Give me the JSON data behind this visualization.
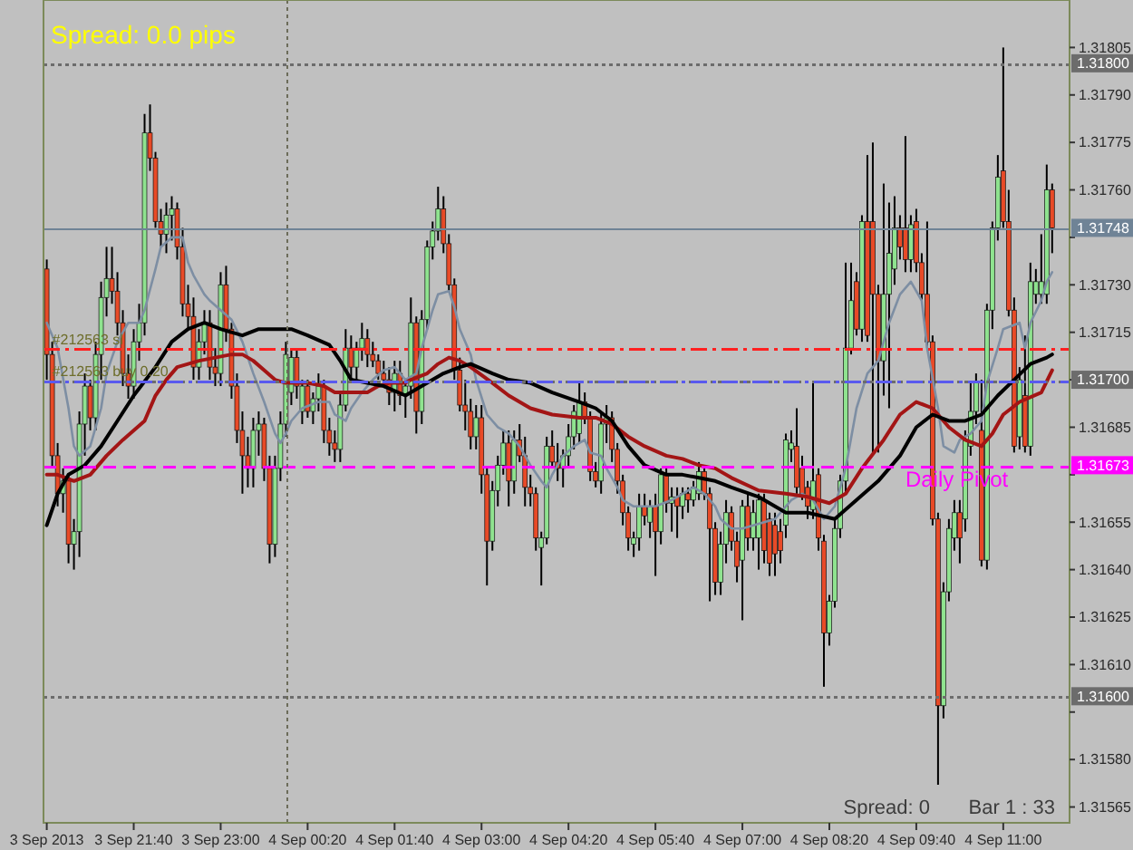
{
  "chart_data": {
    "type": "candlestick",
    "x": [
      "2013-09-03T20:20",
      "2013-09-03T20:25",
      "2013-09-03T20:30",
      "2013-09-03T20:35",
      "2013-09-03T20:40",
      "2013-09-03T20:45",
      "2013-09-03T20:50",
      "2013-09-03T20:55",
      "2013-09-03T21:00",
      "2013-09-03T21:05",
      "2013-09-03T21:10",
      "2013-09-03T21:15",
      "2013-09-03T21:20",
      "2013-09-03T21:25",
      "2013-09-03T21:30",
      "2013-09-03T21:35",
      "2013-09-03T21:40",
      "2013-09-03T21:45",
      "2013-09-03T21:50",
      "2013-09-03T21:55",
      "2013-09-03T22:00",
      "2013-09-03T22:05",
      "2013-09-03T22:10",
      "2013-09-03T22:15",
      "2013-09-03T22:20",
      "2013-09-03T22:25",
      "2013-09-03T22:30",
      "2013-09-03T22:35",
      "2013-09-03T22:40",
      "2013-09-03T22:45",
      "2013-09-03T22:50",
      "2013-09-03T22:55",
      "2013-09-03T23:00",
      "2013-09-03T23:05",
      "2013-09-03T23:10",
      "2013-09-03T23:15",
      "2013-09-03T23:20",
      "2013-09-03T23:25",
      "2013-09-03T23:30",
      "2013-09-03T23:35",
      "2013-09-03T23:40",
      "2013-09-03T23:45",
      "2013-09-03T23:50",
      "2013-09-03T23:55",
      "2013-09-04T00:00",
      "2013-09-04T00:05",
      "2013-09-04T00:10",
      "2013-09-04T00:15",
      "2013-09-04T00:20",
      "2013-09-04T00:25",
      "2013-09-04T00:30",
      "2013-09-04T00:35",
      "2013-09-04T00:40",
      "2013-09-04T00:45",
      "2013-09-04T00:50",
      "2013-09-04T00:55",
      "2013-09-04T01:00",
      "2013-09-04T01:05",
      "2013-09-04T01:10",
      "2013-09-04T01:15",
      "2013-09-04T01:20",
      "2013-09-04T01:25",
      "2013-09-04T01:30",
      "2013-09-04T01:35",
      "2013-09-04T01:40",
      "2013-09-04T01:45",
      "2013-09-04T01:50",
      "2013-09-04T01:55",
      "2013-09-04T02:00",
      "2013-09-04T02:05",
      "2013-09-04T02:10",
      "2013-09-04T02:15",
      "2013-09-04T02:20",
      "2013-09-04T02:25",
      "2013-09-04T02:30",
      "2013-09-04T02:35",
      "2013-09-04T02:40",
      "2013-09-04T02:45",
      "2013-09-04T02:50",
      "2013-09-04T02:55",
      "2013-09-04T03:00",
      "2013-09-04T03:05",
      "2013-09-04T03:10",
      "2013-09-04T03:15",
      "2013-09-04T03:20",
      "2013-09-04T03:25",
      "2013-09-04T03:30",
      "2013-09-04T03:35",
      "2013-09-04T03:40",
      "2013-09-04T03:45",
      "2013-09-04T03:50",
      "2013-09-04T03:55",
      "2013-09-04T04:00",
      "2013-09-04T04:05",
      "2013-09-04T04:10",
      "2013-09-04T04:15",
      "2013-09-04T04:20",
      "2013-09-04T04:25",
      "2013-09-04T04:30",
      "2013-09-04T04:35",
      "2013-09-04T04:40",
      "2013-09-04T04:45",
      "2013-09-04T04:50",
      "2013-09-04T04:55",
      "2013-09-04T05:00",
      "2013-09-04T05:05",
      "2013-09-04T05:10",
      "2013-09-04T05:15",
      "2013-09-04T05:20",
      "2013-09-04T05:25",
      "2013-09-04T05:30",
      "2013-09-04T05:35",
      "2013-09-04T05:40",
      "2013-09-04T05:45",
      "2013-09-04T05:50",
      "2013-09-04T05:55",
      "2013-09-04T06:00",
      "2013-09-04T06:05",
      "2013-09-04T06:10",
      "2013-09-04T06:15",
      "2013-09-04T06:20",
      "2013-09-04T06:25",
      "2013-09-04T06:30",
      "2013-09-04T06:35",
      "2013-09-04T06:40",
      "2013-09-04T06:45",
      "2013-09-04T06:50",
      "2013-09-04T06:55",
      "2013-09-04T07:00",
      "2013-09-04T07:05",
      "2013-09-04T07:10",
      "2013-09-04T07:15",
      "2013-09-04T07:20",
      "2013-09-04T07:25",
      "2013-09-04T07:30",
      "2013-09-04T07:35",
      "2013-09-04T07:40",
      "2013-09-04T07:45",
      "2013-09-04T07:50",
      "2013-09-04T07:55",
      "2013-09-04T08:00",
      "2013-09-04T08:05",
      "2013-09-04T08:10",
      "2013-09-04T08:15",
      "2013-09-04T08:20",
      "2013-09-04T08:25",
      "2013-09-04T08:30",
      "2013-09-04T08:35",
      "2013-09-04T08:40",
      "2013-09-04T08:45",
      "2013-09-04T08:50",
      "2013-09-04T08:55",
      "2013-09-04T09:00",
      "2013-09-04T09:05",
      "2013-09-04T09:10",
      "2013-09-04T09:15",
      "2013-09-04T09:20",
      "2013-09-04T09:25",
      "2013-09-04T09:30",
      "2013-09-04T09:35",
      "2013-09-04T09:40",
      "2013-09-04T09:45",
      "2013-09-04T09:50",
      "2013-09-04T09:55",
      "2013-09-04T10:00",
      "2013-09-04T10:05",
      "2013-09-04T10:10",
      "2013-09-04T10:15",
      "2013-09-04T10:20",
      "2013-09-04T10:25",
      "2013-09-04T10:30",
      "2013-09-04T10:35",
      "2013-09-04T10:40",
      "2013-09-04T10:45",
      "2013-09-04T10:50",
      "2013-09-04T10:55",
      "2013-09-04T11:00",
      "2013-09-04T11:05",
      "2013-09-04T11:10",
      "2013-09-04T11:15",
      "2013-09-04T11:20",
      "2013-09-04T11:25",
      "2013-09-04T11:30",
      "2013-09-04T11:35",
      "2013-09-04T11:40",
      "2013-09-04T11:45"
    ],
    "ohlc": [
      [
        1.31735,
        1.31738,
        1.317,
        1.31708
      ],
      [
        1.31708,
        1.31712,
        1.31672,
        1.31676
      ],
      [
        1.31676,
        1.3168,
        1.3166,
        1.31664
      ],
      [
        1.31664,
        1.31672,
        1.31658,
        1.31668
      ],
      [
        1.31668,
        1.3167,
        1.31642,
        1.31648
      ],
      [
        1.31648,
        1.31656,
        1.3164,
        1.31652
      ],
      [
        1.31652,
        1.3169,
        1.31644,
        1.31686
      ],
      [
        1.31686,
        1.31702,
        1.31676,
        1.31698
      ],
      [
        1.31698,
        1.317,
        1.31684,
        1.31688
      ],
      [
        1.31688,
        1.31712,
        1.31684,
        1.31708
      ],
      [
        1.31708,
        1.31731,
        1.317,
        1.31726
      ],
      [
        1.31726,
        1.31742,
        1.3172,
        1.31732
      ],
      [
        1.31732,
        1.31742,
        1.31724,
        1.31728
      ],
      [
        1.31728,
        1.31734,
        1.31714,
        1.31718
      ],
      [
        1.31718,
        1.31722,
        1.31698,
        1.31702
      ],
      [
        1.31702,
        1.31708,
        1.31694,
        1.31698
      ],
      [
        1.31698,
        1.31716,
        1.31694,
        1.31712
      ],
      [
        1.31712,
        1.31724,
        1.31706,
        1.31718
      ],
      [
        1.31718,
        1.31784,
        1.31714,
        1.31778
      ],
      [
        1.31778,
        1.31787,
        1.31766,
        1.3177
      ],
      [
        1.3177,
        1.31772,
        1.31748,
        1.3175
      ],
      [
        1.3175,
        1.31754,
        1.31742,
        1.31746
      ],
      [
        1.31746,
        1.31756,
        1.3174,
        1.31752
      ],
      [
        1.31752,
        1.31758,
        1.31744,
        1.31754
      ],
      [
        1.31754,
        1.31756,
        1.31738,
        1.31742
      ],
      [
        1.31742,
        1.31748,
        1.3172,
        1.31724
      ],
      [
        1.31724,
        1.3173,
        1.31716,
        1.3172
      ],
      [
        1.3172,
        1.31726,
        1.317,
        1.31704
      ],
      [
        1.31704,
        1.31716,
        1.317,
        1.31712
      ],
      [
        1.31712,
        1.31722,
        1.31708,
        1.31718
      ],
      [
        1.31718,
        1.31722,
        1.317,
        1.31704
      ],
      [
        1.31704,
        1.3171,
        1.31698,
        1.31702
      ],
      [
        1.31702,
        1.31734,
        1.31698,
        1.3173
      ],
      [
        1.3173,
        1.31736,
        1.31712,
        1.31716
      ],
      [
        1.31716,
        1.31718,
        1.31694,
        1.31698
      ],
      [
        1.31698,
        1.31702,
        1.3168,
        1.31684
      ],
      [
        1.31684,
        1.3169,
        1.31664,
        1.31676
      ],
      [
        1.31676,
        1.31682,
        1.31666,
        1.31672
      ],
      [
        1.31672,
        1.31688,
        1.31666,
        1.31684
      ],
      [
        1.31684,
        1.3169,
        1.31676,
        1.31686
      ],
      [
        1.31686,
        1.31688,
        1.31668,
        1.31672
      ],
      [
        1.31672,
        1.31676,
        1.31642,
        1.31648
      ],
      [
        1.31648,
        1.31676,
        1.31644,
        1.31672
      ],
      [
        1.31672,
        1.3169,
        1.31668,
        1.31686
      ],
      [
        1.31686,
        1.31712,
        1.31682,
        1.31708
      ],
      [
        1.31696,
        1.3171,
        1.31692,
        1.31707
      ],
      [
        1.31707,
        1.3171,
        1.31694,
        1.31698
      ],
      [
        1.3169,
        1.317,
        1.31686,
        1.31698
      ],
      [
        1.31698,
        1.317,
        1.31688,
        1.3169
      ],
      [
        1.3169,
        1.31696,
        1.31686,
        1.31694
      ],
      [
        1.31694,
        1.31702,
        1.3169,
        1.31698
      ],
      [
        1.31698,
        1.317,
        1.3168,
        1.31684
      ],
      [
        1.31684,
        1.31688,
        1.31676,
        1.3168
      ],
      [
        1.3168,
        1.31684,
        1.31674,
        1.31678
      ],
      [
        1.31678,
        1.31696,
        1.31674,
        1.31692
      ],
      [
        1.31692,
        1.31716,
        1.3169,
        1.3171
      ],
      [
        1.3171,
        1.31714,
        1.317,
        1.31704
      ],
      [
        1.31704,
        1.31712,
        1.317,
        1.3171
      ],
      [
        1.3171,
        1.31718,
        1.31706,
        1.31713
      ],
      [
        1.31713,
        1.31716,
        1.31704,
        1.31708
      ],
      [
        1.31708,
        1.31712,
        1.31704,
        1.31706
      ],
      [
        1.31706,
        1.31708,
        1.317,
        1.31702
      ],
      [
        1.31702,
        1.31706,
        1.31698,
        1.317
      ],
      [
        1.317,
        1.31704,
        1.31692,
        1.31696
      ],
      [
        1.31696,
        1.31706,
        1.3169,
        1.31702
      ],
      [
        1.31702,
        1.31706,
        1.31692,
        1.31695
      ],
      [
        1.31695,
        1.317,
        1.31688,
        1.31698
      ],
      [
        1.31698,
        1.31726,
        1.31694,
        1.31718
      ],
      [
        1.31718,
        1.3172,
        1.31683,
        1.3169
      ],
      [
        1.3169,
        1.31722,
        1.31686,
        1.31719
      ],
      [
        1.31719,
        1.31744,
        1.31716,
        1.31742
      ],
      [
        1.31742,
        1.3175,
        1.31738,
        1.31747
      ],
      [
        1.31747,
        1.31761,
        1.31744,
        1.31754
      ],
      [
        1.31754,
        1.31758,
        1.3174,
        1.31743
      ],
      [
        1.31743,
        1.31746,
        1.31728,
        1.3173
      ],
      [
        1.3173,
        1.31732,
        1.317,
        1.31703
      ],
      [
        1.31703,
        1.31707,
        1.3169,
        1.31692
      ],
      [
        1.31692,
        1.317,
        1.31684,
        1.3169
      ],
      [
        1.3169,
        1.31694,
        1.31678,
        1.31682
      ],
      [
        1.31682,
        1.31692,
        1.31678,
        1.31688
      ],
      [
        1.31688,
        1.31692,
        1.31664,
        1.3167
      ],
      [
        1.3167,
        1.31672,
        1.31635,
        1.31649
      ],
      [
        1.31649,
        1.31668,
        1.31646,
        1.31665
      ],
      [
        1.31665,
        1.31676,
        1.3166,
        1.31673
      ],
      [
        1.31673,
        1.31684,
        1.3167,
        1.3168
      ],
      [
        1.3168,
        1.31684,
        1.3166,
        1.31668
      ],
      [
        1.31668,
        1.31684,
        1.31664,
        1.31681
      ],
      [
        1.31681,
        1.31686,
        1.31674,
        1.31676
      ],
      [
        1.31676,
        1.31682,
        1.3166,
        1.31666
      ],
      [
        1.31666,
        1.3167,
        1.3166,
        1.31664
      ],
      [
        1.31664,
        1.31666,
        1.31646,
        1.3165
      ],
      [
        1.31647,
        1.31652,
        1.31635,
        1.3165
      ],
      [
        1.3165,
        1.31682,
        1.31648,
        1.31679
      ],
      [
        1.31679,
        1.31684,
        1.31672,
        1.31674
      ],
      [
        1.31674,
        1.3168,
        1.31668,
        1.31672
      ],
      [
        1.31672,
        1.31678,
        1.31666,
        1.31676
      ],
      [
        1.31676,
        1.31686,
        1.31672,
        1.31682
      ],
      [
        1.31682,
        1.31692,
        1.31678,
        1.3169
      ],
      [
        1.31683,
        1.31699,
        1.3168,
        1.31693
      ],
      [
        1.31693,
        1.31696,
        1.31686,
        1.31688
      ],
      [
        1.31688,
        1.3169,
        1.31668,
        1.31671
      ],
      [
        1.31671,
        1.31674,
        1.31666,
        1.31668
      ],
      [
        1.31668,
        1.3169,
        1.31664,
        1.31686
      ],
      [
        1.31686,
        1.31692,
        1.3168,
        1.31688
      ],
      [
        1.31688,
        1.3169,
        1.31674,
        1.31678
      ],
      [
        1.31678,
        1.3168,
        1.31664,
        1.31668
      ],
      [
        1.31668,
        1.3167,
        1.31654,
        1.31658
      ],
      [
        1.31658,
        1.3166,
        1.31646,
        1.3165
      ],
      [
        1.31648,
        1.31652,
        1.31644,
        1.3165
      ],
      [
        1.3165,
        1.31664,
        1.31646,
        1.3166
      ],
      [
        1.3166,
        1.31664,
        1.31654,
        1.31657
      ],
      [
        1.31655,
        1.31662,
        1.3165,
        1.3166
      ],
      [
        1.3166,
        1.31664,
        1.31638,
        1.31652
      ],
      [
        1.31652,
        1.31672,
        1.31648,
        1.3167
      ],
      [
        1.3167,
        1.31672,
        1.31658,
        1.31661
      ],
      [
        1.31661,
        1.31666,
        1.31652,
        1.31663
      ],
      [
        1.31663,
        1.31666,
        1.3165,
        1.3166
      ],
      [
        1.3166,
        1.31666,
        1.31656,
        1.31664
      ],
      [
        1.31664,
        1.31666,
        1.31658,
        1.31662
      ],
      [
        1.31662,
        1.31668,
        1.3166,
        1.31666
      ],
      [
        1.31664,
        1.31674,
        1.31662,
        1.31671
      ],
      [
        1.31671,
        1.31673,
        1.31662,
        1.31664
      ],
      [
        1.31664,
        1.31666,
        1.3163,
        1.31653
      ],
      [
        1.31653,
        1.31655,
        1.31632,
        1.31636
      ],
      [
        1.31636,
        1.31652,
        1.31632,
        1.31648
      ],
      [
        1.31648,
        1.31662,
        1.31642,
        1.31658
      ],
      [
        1.31658,
        1.3166,
        1.31646,
        1.31649
      ],
      [
        1.31649,
        1.31652,
        1.31636,
        1.31641
      ],
      [
        1.31643,
        1.31662,
        1.31624,
        1.3166
      ],
      [
        1.3166,
        1.31664,
        1.31646,
        1.3165
      ],
      [
        1.3165,
        1.31662,
        1.31646,
        1.31658
      ],
      [
        1.3165,
        1.31664,
        1.3164,
        1.31662
      ],
      [
        1.31662,
        1.31664,
        1.31642,
        1.31646
      ],
      [
        1.31656,
        1.31658,
        1.31638,
        1.31642
      ],
      [
        1.31654,
        1.31658,
        1.31638,
        1.31645
      ],
      [
        1.31652,
        1.31656,
        1.31642,
        1.31646
      ],
      [
        1.31654,
        1.31683,
        1.3165,
        1.31681
      ],
      [
        1.31678,
        1.31684,
        1.31674,
        1.3168
      ],
      [
        1.31679,
        1.31691,
        1.31664,
        1.31666
      ],
      [
        1.31672,
        1.31676,
        1.31662,
        1.31664
      ],
      [
        1.31666,
        1.31668,
        1.31656,
        1.3166
      ],
      [
        1.31659,
        1.31699,
        1.31656,
        1.31668
      ],
      [
        1.3167,
        1.31672,
        1.31646,
        1.3165
      ],
      [
        1.31649,
        1.31651,
        1.31603,
        1.3162
      ],
      [
        1.3162,
        1.31632,
        1.31616,
        1.3163
      ],
      [
        1.3163,
        1.31656,
        1.31628,
        1.31653
      ],
      [
        1.31653,
        1.3167,
        1.3165,
        1.31668
      ],
      [
        1.31668,
        1.31737,
        1.31664,
        1.3171
      ],
      [
        1.3171,
        1.31737,
        1.31708,
        1.31725
      ],
      [
        1.31731,
        1.31734,
        1.31714,
        1.31716
      ],
      [
        1.31716,
        1.31752,
        1.31712,
        1.3175
      ],
      [
        1.3175,
        1.31771,
        1.31712,
        1.31714
      ],
      [
        1.3175,
        1.31775,
        1.31676,
        1.31727
      ],
      [
        1.31727,
        1.3173,
        1.31677,
        1.31706
      ],
      [
        1.31706,
        1.31762,
        1.31695,
        1.31727
      ],
      [
        1.31727,
        1.31756,
        1.31691,
        1.3174
      ],
      [
        1.31735,
        1.31758,
        1.3173,
        1.31748
      ],
      [
        1.31748,
        1.31752,
        1.31738,
        1.31742
      ],
      [
        1.31748,
        1.31777,
        1.31734,
        1.31738
      ],
      [
        1.31738,
        1.31752,
        1.31734,
        1.31749
      ],
      [
        1.3175,
        1.31754,
        1.31734,
        1.31737
      ],
      [
        1.31737,
        1.3174,
        1.31725,
        1.31727
      ],
      [
        1.31727,
        1.3175,
        1.3171,
        1.31712
      ],
      [
        1.31712,
        1.31714,
        1.31654,
        1.31656
      ],
      [
        1.31656,
        1.31658,
        1.31572,
        1.31597
      ],
      [
        1.31597,
        1.31636,
        1.31593,
        1.31633
      ],
      [
        1.31633,
        1.31656,
        1.3163,
        1.31653
      ],
      [
        1.3165,
        1.31662,
        1.31646,
        1.31658
      ],
      [
        1.31658,
        1.31662,
        1.31642,
        1.3165
      ],
      [
        1.31656,
        1.31684,
        1.31652,
        1.31681
      ],
      [
        1.31679,
        1.31699,
        1.31676,
        1.3169
      ],
      [
        1.3169,
        1.31702,
        1.31686,
        1.31699
      ],
      [
        1.31684,
        1.317,
        1.31641,
        1.31643
      ],
      [
        1.31643,
        1.31724,
        1.3164,
        1.31722
      ],
      [
        1.31722,
        1.3175,
        1.31716,
        1.31748
      ],
      [
        1.31748,
        1.31771,
        1.31744,
        1.31764
      ],
      [
        1.31766,
        1.31805,
        1.31748,
        1.3175
      ],
      [
        1.3175,
        1.3176,
        1.3172,
        1.31722
      ],
      [
        1.31722,
        1.31726,
        1.31677,
        1.31679
      ],
      [
        1.31682,
        1.31704,
        1.31678,
        1.317
      ],
      [
        1.31695,
        1.31714,
        1.31677,
        1.31679
      ],
      [
        1.31679,
        1.31737,
        1.31676,
        1.31731
      ],
      [
        1.31727,
        1.31735,
        1.31724,
        1.31731
      ],
      [
        1.31727,
        1.31746,
        1.31724,
        1.31731
      ],
      [
        1.31727,
        1.31768,
        1.31724,
        1.3176
      ],
      [
        1.3176,
        1.31762,
        1.3174,
        1.31748
      ]
    ],
    "series": [
      {
        "type": "line",
        "color": "#7d8ea3",
        "x": [
          "2013-09-03T20:20",
          "2013-09-03T20:30",
          "2013-09-03T20:40",
          "2013-09-03T20:45",
          "2013-09-03T20:50",
          "2013-09-03T21:00",
          "2013-09-03T21:10",
          "2013-09-03T21:15",
          "2013-09-03T21:25",
          "2013-09-03T21:35",
          "2013-09-03T21:45",
          "2013-09-03T21:50",
          "2013-09-03T22:00",
          "2013-09-03T22:05",
          "2013-09-03T22:15",
          "2013-09-03T22:25",
          "2013-09-03T22:30",
          "2013-09-03T22:35",
          "2013-09-03T22:45",
          "2013-09-03T22:50",
          "2013-09-03T23:00",
          "2013-09-03T23:10",
          "2013-09-03T23:20",
          "2013-09-03T23:30",
          "2013-09-03T23:40",
          "2013-09-03T23:50",
          "2013-09-03T23:55",
          "2013-09-04T00:00",
          "2013-09-04T00:05",
          "2013-09-04T00:15",
          "2013-09-04T00:30",
          "2013-09-04T00:40",
          "2013-09-04T00:45",
          "2013-09-04T00:55",
          "2013-09-04T01:00",
          "2013-09-04T01:10",
          "2013-09-04T01:20",
          "2013-09-04T01:30",
          "2013-09-04T01:40",
          "2013-09-04T01:50",
          "2013-09-04T02:00",
          "2013-09-04T02:05",
          "2013-09-04T02:15",
          "2013-09-04T02:20",
          "2013-09-04T02:30",
          "2013-09-04T02:35",
          "2013-09-04T02:40",
          "2013-09-04T02:50",
          "2013-09-04T02:55",
          "2013-09-04T03:05",
          "2013-09-04T03:15",
          "2013-09-04T03:25",
          "2013-09-04T03:35",
          "2013-09-04T03:45",
          "2013-09-04T03:55",
          "2013-09-04T04:00",
          "2013-09-04T04:05",
          "2013-09-04T04:15",
          "2013-09-04T04:25",
          "2013-09-04T04:35",
          "2013-09-04T04:40",
          "2013-09-04T04:50",
          "2013-09-04T04:55",
          "2013-09-04T05:05",
          "2013-09-04T05:10",
          "2013-09-04T05:20",
          "2013-09-04T05:30",
          "2013-09-04T05:40",
          "2013-09-04T05:55",
          "2013-09-04T06:05",
          "2013-09-04T06:15",
          "2013-09-04T06:25",
          "2013-09-04T06:35",
          "2013-09-04T06:40",
          "2013-09-04T06:50",
          "2013-09-04T07:00",
          "2013-09-04T07:10",
          "2013-09-04T07:30",
          "2013-09-04T07:45",
          "2013-09-04T07:55",
          "2013-09-04T08:05",
          "2013-09-04T08:15",
          "2013-09-04T08:25",
          "2013-09-04T08:35",
          "2013-09-04T08:45",
          "2013-09-04T08:55",
          "2013-09-04T09:05",
          "2013-09-04T09:15",
          "2013-09-04T09:25",
          "2013-09-04T09:35",
          "2013-09-04T09:45",
          "2013-09-04T09:50",
          "2013-09-04T10:00",
          "2013-09-04T10:05",
          "2013-09-04T10:15",
          "2013-09-04T10:20",
          "2013-09-04T10:30",
          "2013-09-04T10:40",
          "2013-09-04T10:45",
          "2013-09-04T10:55",
          "2013-09-04T11:00",
          "2013-09-04T11:15",
          "2013-09-04T11:20",
          "2013-09-04T11:25",
          "2013-09-04T11:35",
          "2013-09-04T11:40",
          "2013-09-04T11:45"
        ],
        "values": [
          1.31718,
          1.3171,
          1.31691,
          1.31679,
          1.31676,
          1.31679,
          1.31691,
          1.31702,
          1.31712,
          1.31718,
          1.31718,
          1.31722,
          1.31735,
          1.31742,
          1.31745,
          1.31745,
          1.31737,
          1.31733,
          1.31727,
          1.31725,
          1.31722,
          1.31719,
          1.31712,
          1.31702,
          1.31693,
          1.31683,
          1.3168,
          1.31683,
          1.31687,
          1.31691,
          1.31693,
          1.31693,
          1.31689,
          1.31687,
          1.31691,
          1.31696,
          1.317,
          1.31703,
          1.31704,
          1.317,
          1.31702,
          1.3171,
          1.31722,
          1.31727,
          1.31728,
          1.31723,
          1.31716,
          1.31708,
          1.317,
          1.31689,
          1.31685,
          1.31683,
          1.31679,
          1.31673,
          1.31668,
          1.31666,
          1.3167,
          1.31676,
          1.31679,
          1.31681,
          1.31677,
          1.31676,
          1.31672,
          1.31666,
          1.31662,
          1.3166,
          1.3166,
          1.3166,
          1.31662,
          1.31664,
          1.31666,
          1.31664,
          1.3166,
          1.31656,
          1.31653,
          1.31653,
          1.31654,
          1.31656,
          1.31662,
          1.31664,
          1.31662,
          1.31656,
          1.3166,
          1.31672,
          1.31691,
          1.31702,
          1.31706,
          1.31718,
          1.31727,
          1.31731,
          1.31725,
          1.3171,
          1.31691,
          1.31679,
          1.31677,
          1.31681,
          1.31683,
          1.31687,
          1.31699,
          1.3171,
          1.31716,
          1.31718,
          1.3171,
          1.31718,
          1.31725,
          1.31731,
          1.31734
        ]
      },
      {
        "type": "line",
        "color": "#a31515",
        "x": [
          "2013-09-03T20:20",
          "2013-09-03T20:30",
          "2013-09-03T20:45",
          "2013-09-03T21:00",
          "2013-09-03T21:15",
          "2013-09-03T21:30",
          "2013-09-03T21:50",
          "2013-09-03T22:00",
          "2013-09-03T22:10",
          "2013-09-03T22:20",
          "2013-09-03T22:30",
          "2013-09-03T22:40",
          "2013-09-03T22:55",
          "2013-09-03T23:10",
          "2013-09-03T23:20",
          "2013-09-03T23:30",
          "2013-09-03T23:40",
          "2013-09-03T23:50",
          "2013-09-04T00:00",
          "2013-09-04T00:10",
          "2013-09-04T00:20",
          "2013-09-04T00:35",
          "2013-09-04T00:45",
          "2013-09-04T00:55",
          "2013-09-04T01:05",
          "2013-09-04T01:15",
          "2013-09-04T01:25",
          "2013-09-04T01:35",
          "2013-09-04T01:50",
          "2013-09-04T01:55",
          "2013-09-04T02:10",
          "2013-09-04T02:20",
          "2013-09-04T02:30",
          "2013-09-04T02:40",
          "2013-09-04T02:50",
          "2013-09-04T03:10",
          "2013-09-04T03:25",
          "2013-09-04T03:45",
          "2013-09-04T04:05",
          "2013-09-04T04:30",
          "2013-09-04T04:45",
          "2013-09-04T05:00",
          "2013-09-04T05:15",
          "2013-09-04T05:30",
          "2013-09-04T05:50",
          "2013-09-04T06:05",
          "2013-09-04T06:20",
          "2013-09-04T06:35",
          "2013-09-04T06:50",
          "2013-09-04T07:15",
          "2013-09-04T07:40",
          "2013-09-04T08:00",
          "2013-09-04T08:20",
          "2013-09-04T08:35",
          "2013-09-04T08:50",
          "2013-09-04T09:10",
          "2013-09-04T09:25",
          "2013-09-04T09:40",
          "2013-09-04T09:55",
          "2013-09-04T10:10",
          "2013-09-04T10:25",
          "2013-09-04T10:40",
          "2013-09-04T10:50",
          "2013-09-04T11:00",
          "2013-09-04T11:15",
          "2013-09-04T11:35",
          "2013-09-04T11:45"
        ],
        "values": [
          1.3167,
          1.3167,
          1.31668,
          1.3167,
          1.31676,
          1.31681,
          1.31687,
          1.31695,
          1.317,
          1.31704,
          1.31705,
          1.31706,
          1.31707,
          1.31708,
          1.31708,
          1.31706,
          1.31703,
          1.317,
          1.31699,
          1.31699,
          1.31699,
          1.31698,
          1.31696,
          1.31696,
          1.31696,
          1.31696,
          1.31698,
          1.31699,
          1.31699,
          1.317,
          1.31702,
          1.31705,
          1.31707,
          1.31706,
          1.31704,
          1.31699,
          1.31695,
          1.31691,
          1.31689,
          1.31688,
          1.31688,
          1.31686,
          1.31682,
          1.31679,
          1.31676,
          1.31675,
          1.31673,
          1.31672,
          1.31669,
          1.31665,
          1.31664,
          1.31663,
          1.31661,
          1.31664,
          1.31672,
          1.31681,
          1.31689,
          1.31693,
          1.31691,
          1.31685,
          1.31681,
          1.31679,
          1.31683,
          1.31689,
          1.31693,
          1.31696,
          1.31703
        ]
      },
      {
        "type": "line",
        "color": "#000000",
        "x": [
          "2013-09-03T20:20",
          "2013-09-03T20:30",
          "2013-09-03T20:40",
          "2013-09-03T20:55",
          "2013-09-03T21:10",
          "2013-09-03T21:25",
          "2013-09-03T21:40",
          "2013-09-03T22:00",
          "2013-09-03T22:15",
          "2013-09-03T22:30",
          "2013-09-03T22:45",
          "2013-09-03T23:00",
          "2013-09-03T23:20",
          "2013-09-03T23:35",
          "2013-09-03T23:50",
          "2013-09-04T00:05",
          "2013-09-04T00:20",
          "2013-09-04T00:40",
          "2013-09-04T00:50",
          "2013-09-04T01:00",
          "2013-09-04T01:15",
          "2013-09-04T01:30",
          "2013-09-04T01:50",
          "2013-09-04T02:10",
          "2013-09-04T02:25",
          "2013-09-04T02:40",
          "2013-09-04T02:50",
          "2013-09-04T03:10",
          "2013-09-04T03:25",
          "2013-09-04T03:45",
          "2013-09-04T04:05",
          "2013-09-04T04:30",
          "2013-09-04T04:45",
          "2013-09-04T05:00",
          "2013-09-04T05:15",
          "2013-09-04T05:30",
          "2013-09-04T05:50",
          "2013-09-04T06:05",
          "2013-09-04T06:20",
          "2013-09-04T06:35",
          "2013-09-04T06:50",
          "2013-09-04T07:15",
          "2013-09-04T07:40",
          "2013-09-04T08:00",
          "2013-09-04T08:25",
          "2013-09-04T08:45",
          "2013-09-04T09:05",
          "2013-09-04T09:25",
          "2013-09-04T09:40",
          "2013-09-04T09:55",
          "2013-09-04T10:10",
          "2013-09-04T10:25",
          "2013-09-04T10:40",
          "2013-09-04T10:55",
          "2013-09-04T11:10",
          "2013-09-04T11:25",
          "2013-09-04T11:40",
          "2013-09-04T11:45"
        ],
        "values": [
          1.31654,
          1.31664,
          1.3167,
          1.31673,
          1.31679,
          1.31687,
          1.31695,
          1.31704,
          1.31712,
          1.31716,
          1.31718,
          1.31716,
          1.31714,
          1.31716,
          1.31716,
          1.31716,
          1.31714,
          1.31711,
          1.31706,
          1.317,
          1.31699,
          1.31698,
          1.31695,
          1.31699,
          1.31702,
          1.31704,
          1.31705,
          1.31702,
          1.317,
          1.31699,
          1.31696,
          1.31693,
          1.31691,
          1.31687,
          1.31679,
          1.31673,
          1.3167,
          1.3167,
          1.31669,
          1.31668,
          1.31666,
          1.31663,
          1.31658,
          1.31658,
          1.31656,
          1.31662,
          1.31668,
          1.31676,
          1.31685,
          1.31689,
          1.31687,
          1.31687,
          1.31689,
          1.31695,
          1.317,
          1.31705,
          1.31707,
          1.31708
        ]
      }
    ],
    "xlim": [
      "2013-09-03T20:17",
      "2013-09-04T12:01"
    ],
    "xticks": [
      {
        "value": "2013-09-03T20:20",
        "label": "3 Sep 2013"
      },
      {
        "value": "2013-09-03T21:40",
        "label": "3 Sep 21:40"
      },
      {
        "value": "2013-09-03T23:00",
        "label": "3 Sep 23:00"
      },
      {
        "value": "2013-09-04T00:20",
        "label": "4 Sep 00:20"
      },
      {
        "value": "2013-09-04T01:40",
        "label": "4 Sep 01:40"
      },
      {
        "value": "2013-09-04T03:00",
        "label": "4 Sep 03:00"
      },
      {
        "value": "2013-09-04T04:20",
        "label": "4 Sep 04:20"
      },
      {
        "value": "2013-09-04T05:40",
        "label": "4 Sep 05:40"
      },
      {
        "value": "2013-09-04T07:00",
        "label": "4 Sep 07:00"
      },
      {
        "value": "2013-09-04T08:20",
        "label": "4 Sep 08:20"
      },
      {
        "value": "2013-09-04T09:40",
        "label": "4 Sep 09:40"
      },
      {
        "value": "2013-09-04T11:00",
        "label": "4 Sep 11:00"
      }
    ],
    "ylim": [
      1.3156,
      1.3182
    ],
    "yticks": [
      1.31805,
      {
        "value": 1.3179,
        "label": "1.31790"
      },
      1.31775,
      {
        "value": 1.3176,
        "label": "1.31760"
      },
      {
        "value": 1.31745,
        "label": null
      },
      {
        "value": 1.3173,
        "label": "1.31730"
      },
      1.31715,
      {
        "value": 1.317,
        "label": null
      },
      1.31685,
      {
        "value": 1.3167,
        "label": null
      },
      1.31655,
      {
        "value": 1.3164,
        "label": "1.31640"
      },
      1.31625,
      {
        "value": 1.3161,
        "label": "1.31610"
      },
      {
        "value": 1.31595,
        "label": null
      },
      {
        "value": 1.3158,
        "label": "1.31580"
      },
      1.31565
    ],
    "ref_lines": [
      {
        "axis": "y",
        "value": 1.318,
        "label": "1.31800",
        "color": "#6c6c6c",
        "line_style": "dotted"
      },
      {
        "axis": "y",
        "value": 1.31748,
        "label": "1.31748",
        "color": "#6f8396",
        "line_style": "solid"
      },
      {
        "axis": "y",
        "value": 1.3171,
        "color": "#ff2020",
        "line_style": "dashdot"
      },
      {
        "axis": "y",
        "value": 1.317,
        "label": "1.31700",
        "color": "#6c6c6c",
        "line_style": "dotted"
      },
      {
        "axis": "y",
        "value": 1.317,
        "color": "#5a5aee",
        "line_style": "dashdot"
      },
      {
        "axis": "y",
        "value": 1.31673,
        "label": "1.31673",
        "color": "#ff00ff",
        "line_style": "dashed"
      },
      {
        "axis": "y",
        "value": 1.316,
        "label": "1.31600",
        "color": "#6c6c6c",
        "line_style": "dotted"
      },
      {
        "axis": "x",
        "value": "2013-09-04T00:00",
        "color": "#6c6c5a",
        "line_style": "dotted"
      }
    ],
    "annotations": [
      "Spread: 0.0 pips",
      {
        "text": "#212563 sl",
        "x": "2013-09-03T20:20",
        "y": 1.3171
      },
      {
        "text": "#212563 buy 0.20",
        "x": "2013-09-03T20:20",
        "y": 1.317
      },
      {
        "text": "Daily Pivot",
        "x": "2013-09-04T09:25",
        "y": 1.31673
      },
      "Spread: 0",
      "Bar 1 : 33"
    ]
  }
}
